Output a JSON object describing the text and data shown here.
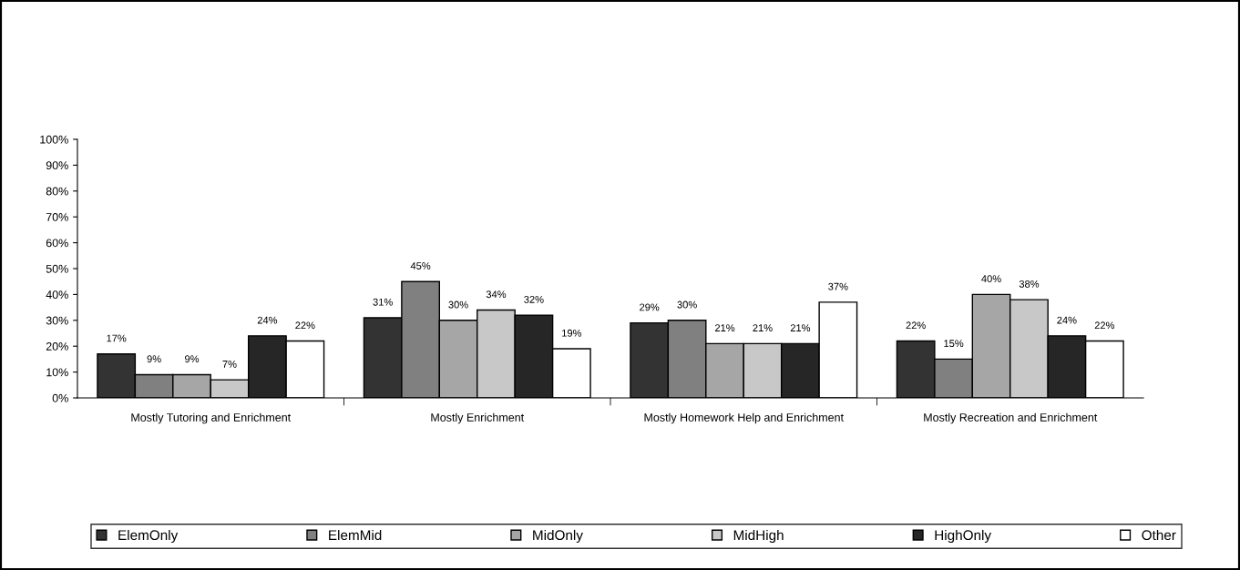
{
  "chart_data": {
    "type": "bar",
    "categories": [
      "Mostly Tutoring and Enrichment",
      "Mostly Enrichment",
      "Mostly Homework Help and Enrichment",
      "Mostly Recreation and Enrichment"
    ],
    "series": [
      {
        "name": "ElemOnly",
        "color": "#333333",
        "values": [
          17,
          31,
          29,
          22
        ],
        "value_labels": [
          "17%",
          "31%",
          "29%",
          "22%"
        ]
      },
      {
        "name": "ElemMid",
        "color": "#808080",
        "values": [
          9,
          45,
          30,
          15
        ],
        "value_labels": [
          "9%",
          "45%",
          "30%",
          "15%"
        ]
      },
      {
        "name": "MidOnly",
        "color": "#a6a6a6",
        "values": [
          9,
          30,
          21,
          40
        ],
        "value_labels": [
          "9%",
          "30%",
          "21%",
          "40%"
        ]
      },
      {
        "name": "MidHigh",
        "color": "#c8c8c8",
        "values": [
          7,
          34,
          21,
          38
        ],
        "value_labels": [
          "7%",
          "34%",
          "21%",
          "38%"
        ]
      },
      {
        "name": "HighOnly",
        "color": "#262626",
        "values": [
          24,
          32,
          21,
          24
        ],
        "value_labels": [
          "24%",
          "32%",
          "21%",
          "24%"
        ]
      },
      {
        "name": "Other",
        "color": "#ffffff",
        "values": [
          22,
          19,
          37,
          22
        ],
        "value_labels": [
          "22%",
          "19%",
          "37%",
          "22%"
        ]
      }
    ],
    "ylim": [
      0,
      100
    ],
    "yticks": [
      {
        "value": 0,
        "label": "0%"
      },
      {
        "value": 10,
        "label": "10%"
      },
      {
        "value": 20,
        "label": "20%"
      },
      {
        "value": 30,
        "label": "30%"
      },
      {
        "value": 40,
        "label": "40%"
      },
      {
        "value": 50,
        "label": "50%"
      },
      {
        "value": 60,
        "label": "60%"
      },
      {
        "value": 70,
        "label": "70%"
      },
      {
        "value": 80,
        "label": "80%"
      },
      {
        "value": 90,
        "label": "90%"
      },
      {
        "value": 100,
        "label": "100%"
      }
    ],
    "grid": false,
    "legend": "bottom"
  }
}
